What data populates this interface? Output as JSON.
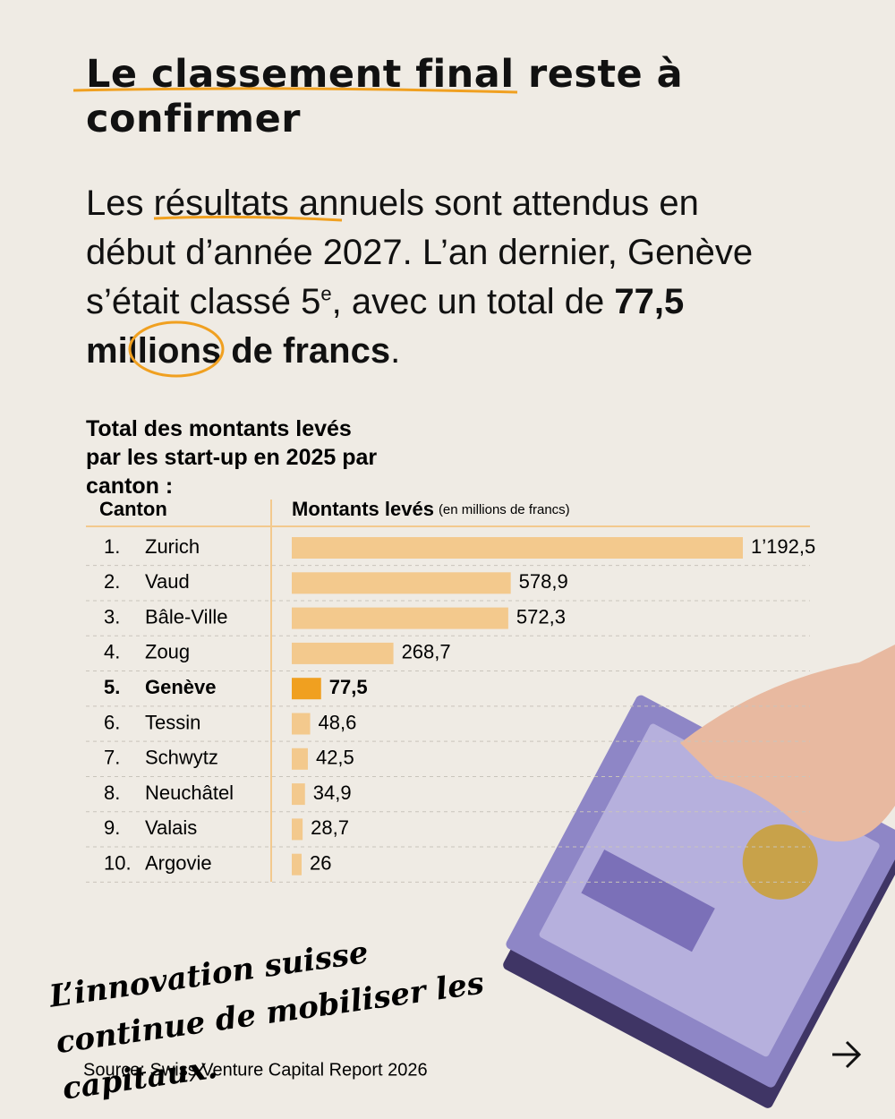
{
  "title": "Le classement final reste à confirmer",
  "paragraph": {
    "text_1": "Les résultats annuels sont attendus en début d’année 2027. L’an dernier, Genève s’était classé 5",
    "superscript": "e",
    "text_2": ", avec un total de ",
    "bold_1": "77,5",
    "bold_2": " millions de francs",
    "text_3": "."
  },
  "chart_data": {
    "type": "bar",
    "title": "Total des montants levés par les start-up en 2025 par canton :",
    "column_headers": [
      "Canton",
      "Montants levés"
    ],
    "unit_note": "(en millions de francs)",
    "ranks": [
      "1.",
      "2.",
      "3.",
      "4.",
      "5.",
      "6.",
      "7.",
      "8.",
      "9.",
      "10."
    ],
    "categories": [
      "Zurich",
      "Vaud",
      "Bâle-Ville",
      "Zoug",
      "Genève",
      "Tessin",
      "Schwytz",
      "Neuchâtel",
      "Valais",
      "Argovie"
    ],
    "values": [
      1192.5,
      578.9,
      572.3,
      268.7,
      77.5,
      48.6,
      42.5,
      34.9,
      28.7,
      26
    ],
    "value_labels": [
      "1’192,5",
      "578,9",
      "572,3",
      "268,7",
      "77,5",
      "48,6",
      "42,5",
      "34,9",
      "28,7",
      "26"
    ],
    "color": "#f3c98d",
    "highlight_color": "#f0a020",
    "highlight_index": 4
  },
  "quote": "L’innovation suisse continue de mobiliser les capitaux.",
  "source": "Source: Swiss Venture Capital Report 2026"
}
